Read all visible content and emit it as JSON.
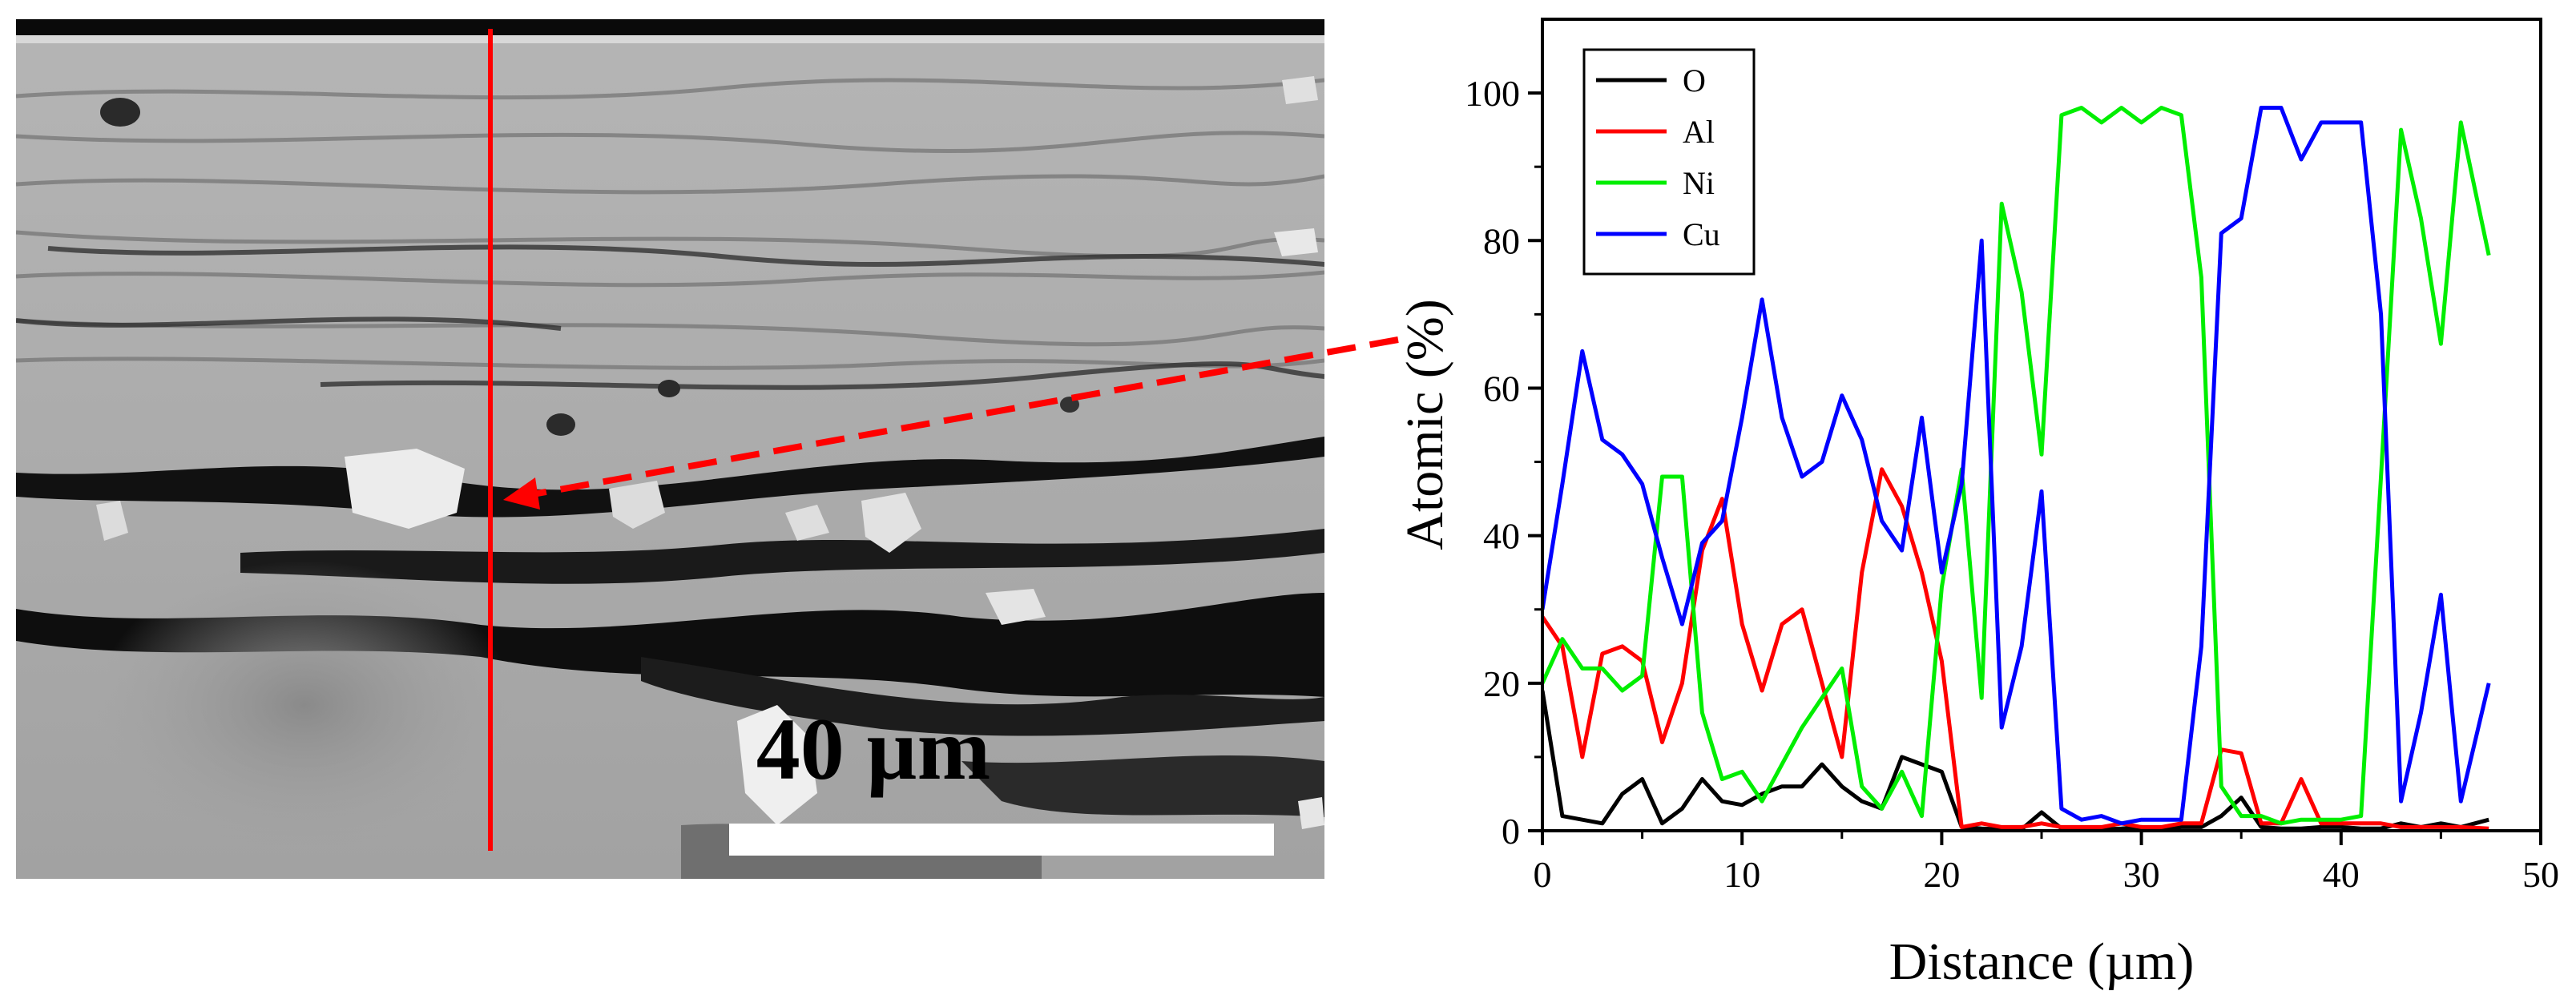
{
  "micrograph": {
    "scale_bar_label": "40 µm",
    "line_color": "#ff0000",
    "arrow_color": "#ff0000"
  },
  "chart_data": {
    "type": "line",
    "title": "",
    "xlabel": "Distance (µm)",
    "ylabel": "Atomic (%)",
    "xlim": [
      0,
      50
    ],
    "ylim": [
      0,
      110
    ],
    "xticks": [
      0,
      10,
      20,
      30,
      40,
      50
    ],
    "yticks": [
      0,
      20,
      40,
      60,
      80,
      100
    ],
    "grid": false,
    "legend_position": "top-left",
    "series": [
      {
        "name": "O",
        "color": "#000000",
        "x": [
          0,
          1,
          2,
          3,
          4,
          5,
          6,
          7,
          8,
          9,
          10,
          11,
          12,
          13,
          14,
          15,
          16,
          17,
          18,
          19,
          20,
          21,
          22,
          23,
          24,
          25,
          26,
          27,
          28,
          29,
          30,
          31,
          32,
          33,
          34,
          35,
          36,
          37,
          38,
          39,
          40,
          41,
          42,
          43,
          44,
          45,
          46,
          47.4
        ],
        "values": [
          19,
          2,
          1.5,
          1,
          5,
          7,
          1,
          3,
          7,
          4,
          3.5,
          5,
          6,
          6,
          9,
          6,
          4,
          3,
          10,
          9,
          8,
          0.5,
          0.3,
          0.2,
          0.2,
          2.5,
          0.3,
          0.2,
          0.2,
          0.3,
          0.5,
          0.3,
          0.5,
          0.5,
          2,
          4.5,
          0.5,
          0.3,
          0.3,
          0.5,
          0.5,
          0.3,
          0.3,
          1,
          0.5,
          1,
          0.5,
          1.5
        ]
      },
      {
        "name": "Al",
        "color": "#ff0000",
        "x": [
          0,
          1,
          2,
          3,
          4,
          5,
          6,
          7,
          8,
          9,
          10,
          11,
          12,
          13,
          14,
          15,
          16,
          17,
          18,
          19,
          20,
          21,
          22,
          23,
          24,
          25,
          26,
          27,
          28,
          29,
          30,
          31,
          32,
          33,
          34,
          35,
          36,
          37,
          38,
          39,
          40,
          41,
          42,
          43,
          44,
          45,
          46,
          47.4
        ],
        "values": [
          29,
          25,
          10,
          24,
          25,
          23,
          12,
          20,
          38,
          45,
          28,
          19,
          28,
          30,
          20,
          10,
          35,
          49,
          44,
          35,
          23,
          0.5,
          1,
          0.5,
          0.5,
          1,
          0.5,
          0.5,
          0.5,
          1,
          0.5,
          0.5,
          1,
          1,
          11,
          10.5,
          1,
          1,
          7,
          1,
          1,
          1,
          1,
          0.5,
          0.5,
          0.5,
          0.5,
          0.3
        ]
      },
      {
        "name": "Ni",
        "color": "#00ee00",
        "x": [
          0,
          1,
          2,
          3,
          4,
          5,
          6,
          7,
          8,
          9,
          10,
          11,
          12,
          13,
          14,
          15,
          16,
          17,
          18,
          19,
          20,
          21,
          22,
          23,
          24,
          25,
          26,
          27,
          28,
          29,
          30,
          31,
          32,
          33,
          34,
          35,
          36,
          37,
          38,
          39,
          40,
          41,
          42,
          43,
          44,
          45,
          46,
          47.4
        ],
        "values": [
          20,
          26,
          22,
          22,
          19,
          21,
          48,
          48,
          16,
          7,
          8,
          4,
          9,
          14,
          18,
          22,
          6,
          3,
          8,
          2,
          33,
          49,
          18,
          85,
          73,
          51,
          97,
          98,
          96,
          98,
          96,
          98,
          97,
          75,
          6,
          2,
          2,
          1,
          1.5,
          1.5,
          1.5,
          2,
          48,
          95,
          83,
          66,
          96,
          78
        ]
      },
      {
        "name": "Cu",
        "color": "#0000ff",
        "x": [
          0,
          1,
          2,
          3,
          4,
          5,
          6,
          7,
          8,
          9,
          10,
          11,
          12,
          13,
          14,
          15,
          16,
          17,
          18,
          19,
          20,
          21,
          22,
          23,
          24,
          25,
          26,
          27,
          28,
          29,
          30,
          31,
          32,
          33,
          34,
          35,
          36,
          37,
          38,
          39,
          40,
          41,
          42,
          43,
          44,
          45,
          46,
          47.4
        ],
        "values": [
          30,
          47,
          65,
          53,
          51,
          47,
          37,
          28,
          39,
          42,
          56,
          72,
          56,
          48,
          50,
          59,
          53,
          42,
          38,
          56,
          35,
          47,
          80,
          14,
          25,
          46,
          3,
          1.5,
          2,
          1,
          1.5,
          1.5,
          1.5,
          25,
          81,
          83,
          98,
          98,
          91,
          96,
          96,
          96,
          70,
          4,
          16,
          32,
          4,
          20
        ]
      }
    ]
  }
}
